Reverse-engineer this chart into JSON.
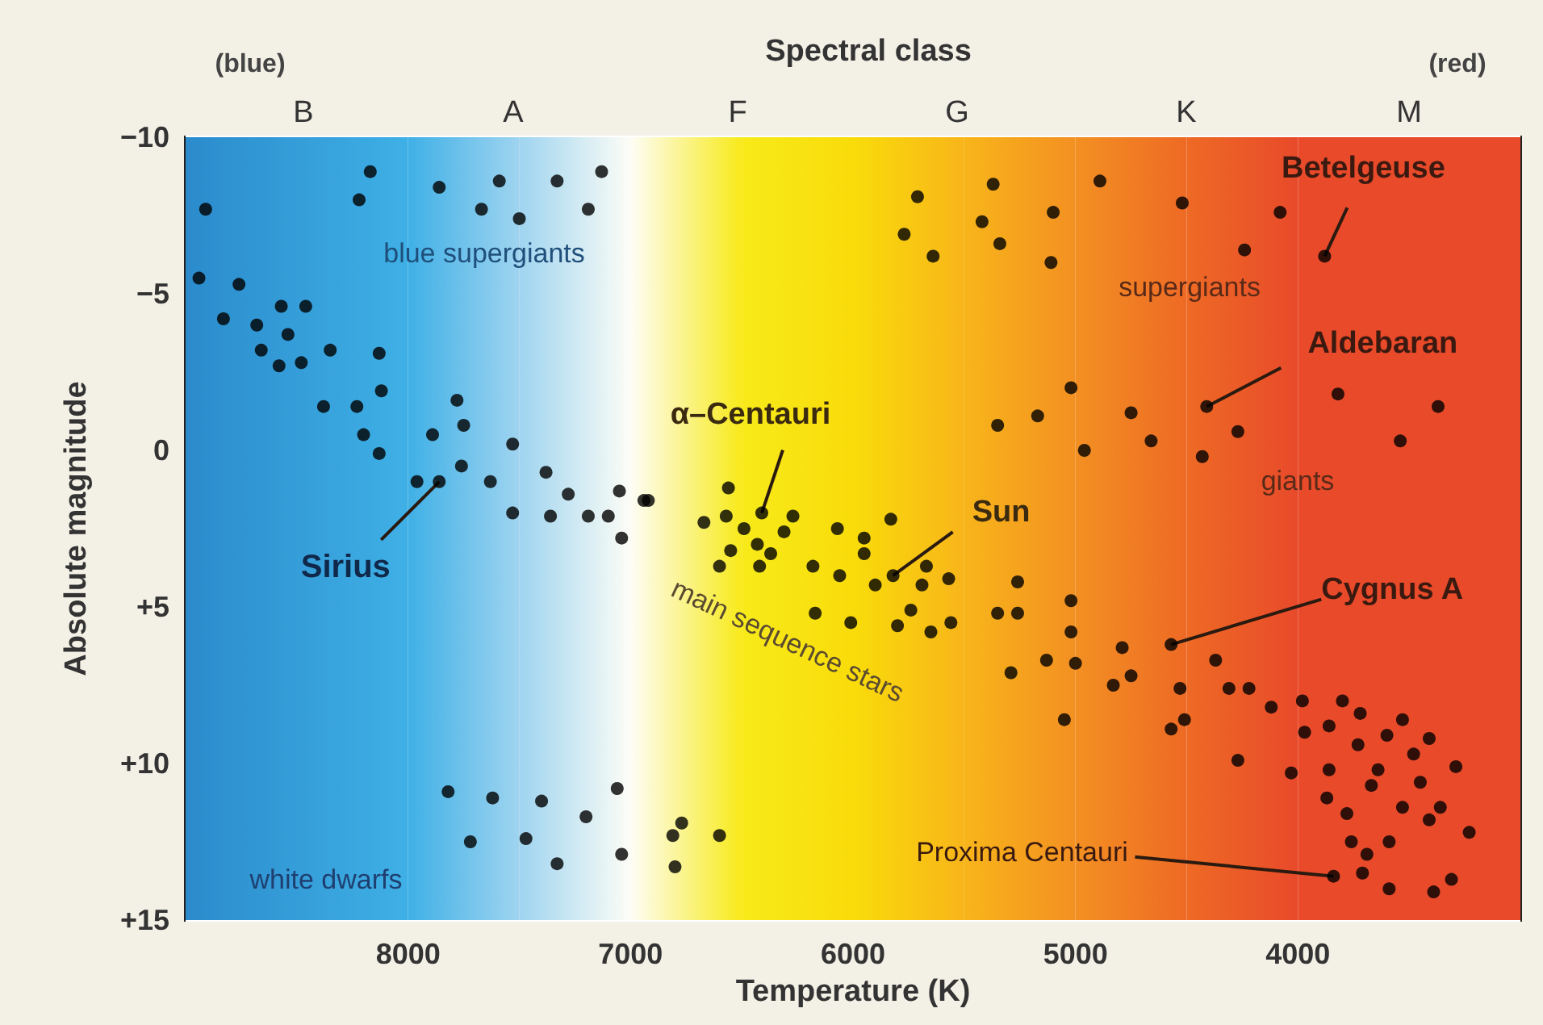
{
  "chart_data": {
    "type": "scatter",
    "xlabel": "Temperature (K)",
    "ylabel": "Absolute magnitude",
    "xlim": [
      9000,
      3000
    ],
    "xticks": [
      8000,
      7000,
      6000,
      5000,
      4000
    ],
    "ylim": [
      15,
      -10
    ],
    "yticks": [
      {
        "value": -10,
        "label": "−10"
      },
      {
        "value": -5,
        "label": "−5"
      },
      0,
      {
        "value": 5,
        "label": "+5"
      },
      {
        "value": 10,
        "label": "+10"
      },
      {
        "value": 15,
        "label": "+15"
      }
    ],
    "grid": true,
    "marker": "circle",
    "bands": [
      {
        "axis": "x",
        "from": 9000,
        "to": 8000,
        "color": "#2b8bcc"
      },
      {
        "axis": "x",
        "from": 8000,
        "to": 7500,
        "color": "#3fb0e6"
      },
      {
        "axis": "x",
        "from": 7500,
        "to": 7000,
        "color": "#9fd4f0"
      },
      {
        "axis": "x",
        "from": 7000,
        "to": 6500,
        "color": "#fdfdf6"
      },
      {
        "axis": "x",
        "from": 6500,
        "to": 6000,
        "color": "#f8ea1a"
      },
      {
        "axis": "x",
        "from": 6000,
        "to": 5500,
        "color": "#f9dc0a"
      },
      {
        "axis": "x",
        "from": 5500,
        "to": 5000,
        "color": "#f8b51a"
      },
      {
        "axis": "x",
        "from": 5000,
        "to": 4500,
        "color": "#f39022"
      },
      {
        "axis": "x",
        "from": 4500,
        "to": 4000,
        "color": "#ee6a25"
      },
      {
        "axis": "x",
        "from": 4000,
        "to": 3000,
        "color": "#e84a2a"
      }
    ],
    "annotations": [
      {
        "text": "Betelgeuse",
        "x": 3880,
        "y": -6.2
      },
      {
        "text": "Aldebaran",
        "x": 4410,
        "y": -1.4
      },
      {
        "text": "α–Centauri",
        "x": 6410,
        "y": 2.0
      },
      {
        "text": "Sun",
        "x": 5820,
        "y": 4.0
      },
      {
        "text": "Cygnus A",
        "x": 4570,
        "y": 6.2
      },
      {
        "text": "Sirius",
        "x": 7860,
        "y": 1.0
      },
      {
        "text": "Proxima Centauri",
        "x": 3840,
        "y": 13.6
      },
      "blue supergiants",
      "supergiants",
      "giants",
      "main sequence stars",
      "white dwarfs",
      "(blue)",
      "(red)",
      "Spectral class",
      "B",
      "A",
      "F",
      "G",
      "K",
      "M"
    ],
    "series": [
      {
        "color": "#000000",
        "x": [
          8170,
          8220,
          8910,
          7860,
          7590,
          7670,
          7500,
          7330,
          7130,
          7190,
          8940,
          8760,
          8570,
          8460,
          8830,
          8680,
          8540,
          8660,
          8580,
          8480,
          8350,
          8130,
          8120,
          8380,
          8230,
          7780,
          7750,
          7890,
          8200,
          8130,
          7530,
          7760,
          7380,
          7960,
          7860,
          7630,
          7280,
          7050,
          6940,
          7530,
          7360,
          7190,
          7100,
          7040,
          5710,
          5370,
          5770,
          5640,
          5420,
          5340,
          5100,
          5110,
          4890,
          4520,
          4080,
          4240,
          3880,
          5020,
          5170,
          5350,
          4960,
          4410,
          4750,
          4660,
          4270,
          4430,
          3820,
          3370,
          3540,
          6920,
          6560,
          6410,
          6570,
          6670,
          6270,
          5830,
          6490,
          6310,
          6070,
          5950,
          6550,
          6430,
          6370,
          6600,
          6420,
          6180,
          6060,
          5950,
          5900,
          5820,
          5670,
          5690,
          5570,
          5260,
          5020,
          6170,
          6010,
          5800,
          5740,
          5650,
          5560,
          5350,
          5260,
          5020,
          5290,
          5130,
          5000,
          5050,
          4790,
          4570,
          4830,
          4750,
          4530,
          4370,
          4310,
          4220,
          4120,
          4570,
          4510,
          3980,
          3970,
          3800,
          3860,
          3720,
          3530,
          3730,
          3600,
          3410,
          3480,
          4270,
          4030,
          3860,
          3640,
          3290,
          3670,
          3450,
          3870,
          3530,
          3360,
          3780,
          3410,
          3230,
          3760,
          3590,
          3690,
          3840,
          3710,
          3590,
          3390,
          3310,
          7820,
          7620,
          7400,
          7200,
          7060,
          7720,
          7470,
          7330,
          7040,
          6770,
          6810,
          6600,
          6800
        ],
        "values": [
          -8.9,
          -8.0,
          -7.7,
          -8.4,
          -8.6,
          -7.7,
          -7.4,
          -8.6,
          -8.9,
          -7.7,
          -5.5,
          -5.3,
          -4.6,
          -4.6,
          -4.2,
          -4.0,
          -3.7,
          -3.2,
          -2.7,
          -2.8,
          -3.2,
          -3.1,
          -1.9,
          -1.4,
          -1.4,
          -1.6,
          -0.8,
          -0.5,
          -0.5,
          0.1,
          -0.2,
          0.5,
          0.7,
          1.0,
          1.0,
          1.0,
          1.4,
          1.3,
          1.6,
          2.0,
          2.1,
          2.1,
          2.1,
          2.8,
          -8.1,
          -8.5,
          -6.9,
          -6.2,
          -7.3,
          -6.6,
          -7.6,
          -6.0,
          -8.6,
          -7.9,
          -7.6,
          -6.4,
          -6.2,
          -2.0,
          -1.1,
          -0.8,
          0.0,
          -1.4,
          -1.2,
          -0.3,
          -0.6,
          0.2,
          -1.8,
          -1.4,
          -0.3,
          1.6,
          1.2,
          2.0,
          2.1,
          2.3,
          2.1,
          2.2,
          2.5,
          2.6,
          2.5,
          2.8,
          3.2,
          3.0,
          3.3,
          3.7,
          3.7,
          3.7,
          4.0,
          3.3,
          4.3,
          4.0,
          3.7,
          4.3,
          4.1,
          4.2,
          4.8,
          5.2,
          5.5,
          5.6,
          5.1,
          5.8,
          5.5,
          5.2,
          5.2,
          5.8,
          7.1,
          6.7,
          6.8,
          8.6,
          6.3,
          6.2,
          7.5,
          7.2,
          7.6,
          6.7,
          7.6,
          7.6,
          8.2,
          8.9,
          8.6,
          8.0,
          9.0,
          8.0,
          8.8,
          8.4,
          8.6,
          9.4,
          9.1,
          9.2,
          9.7,
          9.9,
          10.3,
          10.2,
          10.2,
          10.1,
          10.7,
          10.6,
          11.1,
          11.4,
          11.4,
          11.6,
          11.8,
          12.2,
          12.5,
          12.5,
          12.9,
          13.6,
          13.5,
          14.0,
          14.1,
          13.7,
          10.9,
          11.1,
          11.2,
          11.7,
          10.8,
          12.5,
          12.4,
          13.2,
          12.9,
          11.9,
          12.3,
          12.3,
          13.3
        ]
      }
    ]
  }
}
